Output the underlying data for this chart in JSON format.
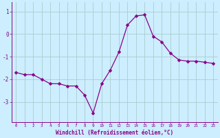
{
  "x": [
    0,
    1,
    2,
    3,
    4,
    5,
    6,
    7,
    8,
    9,
    10,
    11,
    12,
    13,
    14,
    15,
    16,
    17,
    18,
    19,
    20,
    21,
    22,
    23
  ],
  "y": [
    -1.7,
    -1.8,
    -1.8,
    -2.0,
    -2.2,
    -2.2,
    -2.3,
    -2.3,
    -2.7,
    -3.5,
    -2.2,
    -1.6,
    -0.8,
    0.4,
    0.8,
    0.85,
    -0.1,
    -0.35,
    -0.85,
    -1.15,
    -1.2,
    -1.2,
    -1.25,
    -1.3
  ],
  "line_color": "#880088",
  "marker": "D",
  "marker_size": 2.5,
  "bg_color": "#cceeff",
  "grid_color": "#aacccc",
  "xlabel": "Windchill (Refroidissement éolien,°C)",
  "xlabel_color": "#880088",
  "tick_color": "#880088",
  "yticks": [
    1,
    0,
    -1,
    -2,
    -3
  ],
  "xtick_labels": [
    "0",
    "1",
    "2",
    "3",
    "4",
    "5",
    "6",
    "7",
    "8",
    "9",
    "10",
    "11",
    "12",
    "13",
    "14",
    "15",
    "16",
    "17",
    "18",
    "19",
    "20",
    "21",
    "22",
    "23"
  ],
  "ylim": [
    -3.9,
    1.4
  ],
  "xlim": [
    -0.5,
    23.5
  ]
}
